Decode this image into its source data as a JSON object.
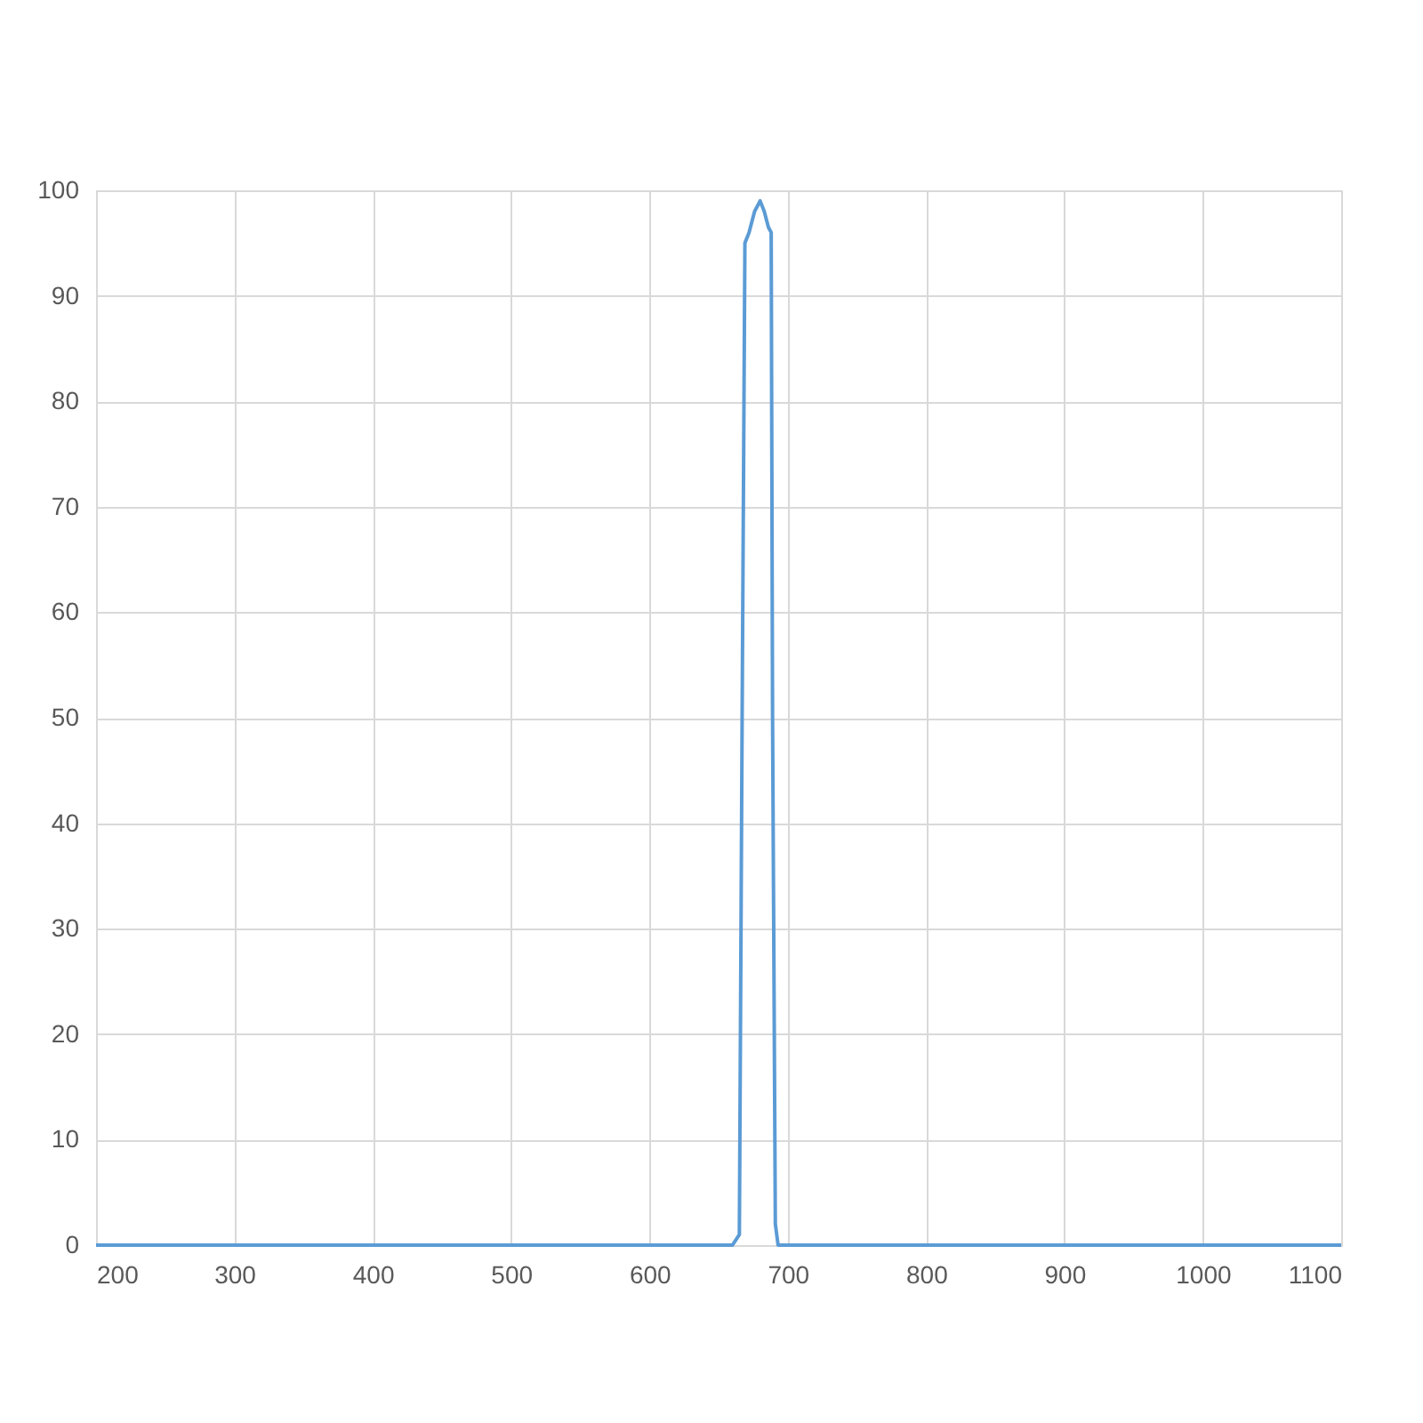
{
  "chart_data": {
    "type": "line",
    "x": [
      200,
      660,
      665,
      667,
      669,
      672,
      676,
      680,
      683,
      686,
      688,
      689,
      691,
      693,
      1100
    ],
    "series": [
      {
        "color": "#5b9bd5",
        "values": [
          0,
          0,
          1,
          50,
          95,
          96,
          98,
          99,
          98,
          96.5,
          96,
          50,
          2,
          0,
          0
        ]
      }
    ],
    "xlim": [
      200,
      1100
    ],
    "xticks": [
      200,
      300,
      400,
      500,
      600,
      700,
      800,
      900,
      1000,
      1100
    ],
    "ylim": [
      0,
      100
    ],
    "yticks": [
      0,
      10,
      20,
      30,
      40,
      50,
      60,
      70,
      80,
      90,
      100
    ],
    "grid": true,
    "marker": "none",
    "line_style": "solid"
  }
}
